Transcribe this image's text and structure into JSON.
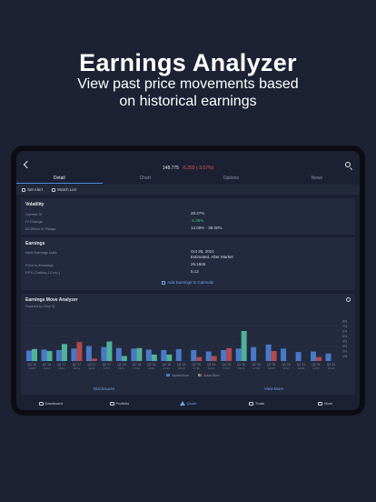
{
  "hero": {
    "title": "Earnings Analyzer",
    "subtitle_line1": "View past price movements based",
    "subtitle_line2": "on historical earnings"
  },
  "header": {
    "price": "148.775",
    "change": "-5.255 (-3.57%)"
  },
  "tabs": [
    "Detail",
    "Chart",
    "Options",
    "News"
  ],
  "actions": {
    "set_alert": "Set Alert",
    "watch_list": "Watch List"
  },
  "volatility": {
    "title": "Volatility",
    "rows": [
      {
        "label": "Current IV",
        "value": "28.27%"
      },
      {
        "label": "IV Change",
        "value": "-1.35%"
      },
      {
        "label": "52 Week IV Range",
        "value": "14.00% - 38.00%"
      }
    ]
  },
  "earnings": {
    "title": "Earnings",
    "next_label": "Next Earnings Date",
    "next_value": "Oct 28, 2021",
    "next_sub": "Estimated, After Market",
    "pe_label": "Price to Earnings",
    "pe_value": "29.1665",
    "eps_label": "EPS (Trailing 12 mo.)",
    "eps_value": "5.12",
    "add_link": "Add Earnings to Calendar"
  },
  "chart_section": {
    "title": "Earnings Move Analyzer",
    "powered": "Powered by Cboe IQ",
    "disclosures": "Disclosures",
    "view_more": "View More"
  },
  "colors": {
    "implied": "#4a79c9",
    "actual_up": "#4fb39a",
    "actual_down": "#b3484e"
  },
  "chart_data": {
    "type": "bar",
    "categories": [
      "Q3 '16",
      "Q4 '16",
      "Q1 '17",
      "Q2 '17",
      "Q3 '17",
      "Q4 '17",
      "Q1 '18",
      "Q2 '18",
      "Q3 '18",
      "Q4 '18",
      "Q1 '19",
      "Q2 '19",
      "Q3 '19",
      "Q4 '19",
      "Q1 '20",
      "Q2 '20",
      "Q3 '20",
      "Q4 '20",
      "Q1 '21",
      "Q2 '21",
      "Q3 '21"
    ],
    "x_sublabels": [
      "10/25",
      "01/31",
      "05/02",
      "08/01",
      "11/02",
      "02/01",
      "05/01",
      "07/31",
      "11/01",
      "01/29",
      "04/30",
      "07/30",
      "10/30",
      "01/28",
      "04/30",
      "07/30",
      "10/29",
      "01/27",
      "04/28",
      "07/27",
      "10/28"
    ],
    "series": [
      {
        "name": "Implied Move",
        "values": [
          2.1,
          2.3,
          2.2,
          2.5,
          3.0,
          2.8,
          2.6,
          2.5,
          2.3,
          2.2,
          2.4,
          2.2,
          1.9,
          2.2,
          2.5,
          2.8,
          3.3,
          2.5,
          1.8,
          1.9,
          1.5
        ]
      },
      {
        "name": "Actual Move",
        "values": [
          2.4,
          2.0,
          3.4,
          3.8,
          0.5,
          3.9,
          1.0,
          2.6,
          1.3,
          1.3,
          0.0,
          0.8,
          1.0,
          2.6,
          6.0,
          0.0,
          2.0,
          0.0,
          0.0,
          0.8,
          0.0
        ]
      }
    ],
    "up": [
      true,
      true,
      true,
      false,
      false,
      true,
      true,
      true,
      true,
      true,
      true,
      false,
      false,
      false,
      true,
      true,
      false,
      true,
      true,
      false,
      true
    ],
    "y_ticks": [
      "8%",
      "7%",
      "6%",
      "5%",
      "4%",
      "3%",
      "2%",
      "1%"
    ],
    "ylim": [
      0,
      8
    ],
    "legend": [
      "Implied Move",
      "Actual Move"
    ]
  },
  "nav": [
    "Dashboard",
    "Portfolio",
    "Quote",
    "Trade",
    "More"
  ]
}
